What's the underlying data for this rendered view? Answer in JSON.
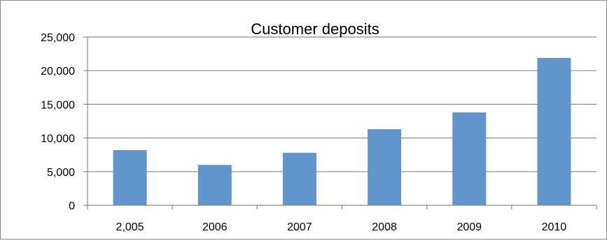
{
  "chart_data": {
    "type": "bar",
    "title": "Customer deposits",
    "xlabel": "",
    "ylabel": "",
    "categories": [
      "2,005",
      "2006",
      "2007",
      "2008",
      "2009",
      "2010"
    ],
    "series": [
      {
        "values": [
          8200,
          6000,
          7800,
          11300,
          13800,
          21900
        ],
        "color": "#6096CB"
      }
    ],
    "ylim": [
      0,
      25000
    ],
    "yticks": [
      "0",
      "5,000",
      "10,000",
      "15,000",
      "20,000",
      "25,000"
    ],
    "grid": true,
    "legend": "none"
  }
}
